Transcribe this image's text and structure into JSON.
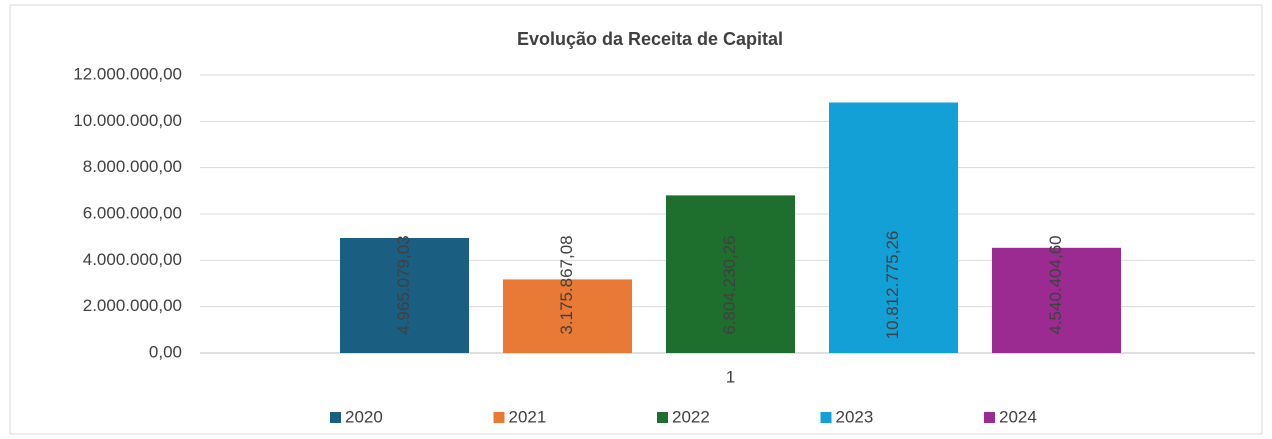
{
  "chart_data": {
    "type": "bar",
    "title": "Evolução da Receita de Capital",
    "categories": [
      "1"
    ],
    "series": [
      {
        "name": "2020",
        "color": "#1a5e82",
        "values": [
          4965079.03
        ],
        "value_labels": [
          "4.965.079,03"
        ]
      },
      {
        "name": "2021",
        "color": "#e97a35",
        "values": [
          3175867.08
        ],
        "value_labels": [
          "3.175.867,08"
        ]
      },
      {
        "name": "2022",
        "color": "#1e6e2e",
        "values": [
          6804230.26
        ],
        "value_labels": [
          "6.804.230,26"
        ]
      },
      {
        "name": "2023",
        "color": "#13a0d6",
        "values": [
          10812775.26
        ],
        "value_labels": [
          "10.812.775,26"
        ]
      },
      {
        "name": "2024",
        "color": "#9b2a91",
        "values": [
          4540404.6
        ],
        "value_labels": [
          "4.540.404,60"
        ]
      }
    ],
    "ylim": [
      0,
      12000000
    ],
    "yticks": [
      {
        "value": 0,
        "label": "0,00"
      },
      {
        "value": 2000000,
        "label": "2.000.000,00"
      },
      {
        "value": 4000000,
        "label": "4.000.000,00"
      },
      {
        "value": 6000000,
        "label": "6.000.000,00"
      },
      {
        "value": 8000000,
        "label": "8.000.000,00"
      },
      {
        "value": 10000000,
        "label": "10.000.000,00"
      },
      {
        "value": 12000000,
        "label": "12.000.000,00"
      }
    ],
    "grid": true,
    "legend": "bottom"
  }
}
